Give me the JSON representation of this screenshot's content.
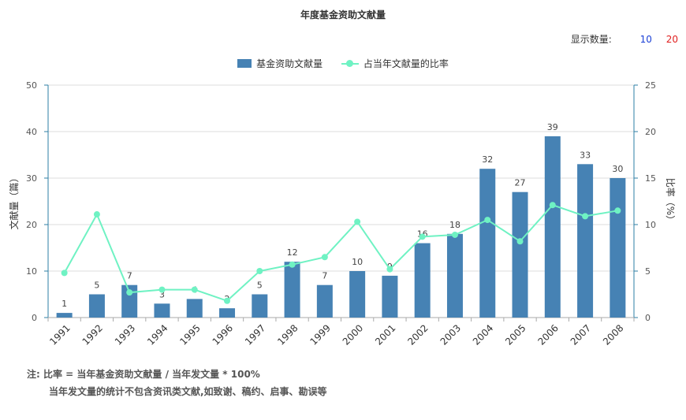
{
  "title": "年度基金资助文献量",
  "display_count": {
    "label": "显示数量:",
    "options": [
      "10",
      "20"
    ],
    "colors": [
      "#1a3fd6",
      "#e02020"
    ]
  },
  "colors": {
    "bar": "#4682b4",
    "line": "#6ff2c3",
    "axis": "#2e7fa6",
    "grid": "#dddddd"
  },
  "chart_data": {
    "type": "bar",
    "title": "年度基金资助文献量",
    "categories": [
      "1991",
      "1992",
      "1993",
      "1994",
      "1995",
      "1996",
      "1997",
      "1998",
      "1999",
      "2000",
      "2001",
      "2002",
      "2003",
      "2004",
      "2005",
      "2006",
      "2007",
      "2008"
    ],
    "series": [
      {
        "name": "基金资助文献量",
        "type": "bar",
        "axis": "left",
        "values": [
          1,
          5,
          7,
          3,
          4,
          2,
          5,
          12,
          7,
          10,
          9,
          16,
          18,
          32,
          27,
          39,
          33,
          30
        ]
      },
      {
        "name": "占当年文献量的比率",
        "type": "line",
        "axis": "right",
        "values": [
          4.8,
          11.1,
          2.7,
          3.0,
          3.0,
          1.8,
          5.0,
          5.7,
          6.5,
          10.3,
          5.2,
          8.7,
          8.9,
          10.5,
          8.2,
          12.1,
          10.9,
          11.5
        ]
      }
    ],
    "ylabel": "文献量（篇）",
    "y2label": "比率（%）",
    "ylim": [
      0,
      50
    ],
    "y2lim": [
      0,
      25
    ],
    "yticks": [
      "0",
      "10",
      "20",
      "30",
      "40",
      "50"
    ],
    "y2ticks": [
      "0",
      "5",
      "10",
      "15",
      "20",
      "25"
    ],
    "grid": true,
    "legend_position": "top-center"
  },
  "notes": {
    "line1": "注:   比率 = 当年基金资助文献量 / 当年发文量 * 100%",
    "line2": "当年发文量的统计不包含资讯类文献,如致谢、稿约、启事、勘误等"
  }
}
